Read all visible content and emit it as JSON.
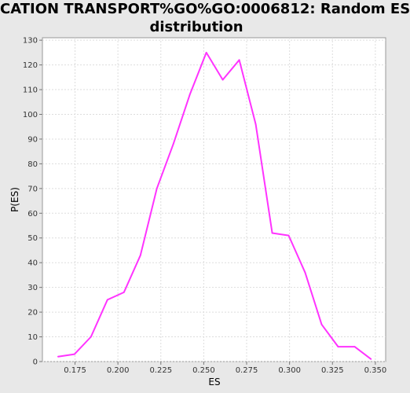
{
  "chart_data": {
    "type": "line",
    "title_lines": [
      "CATION TRANSPORT%GO%GO:0006812: Random ES",
      "distribution"
    ],
    "xlabel": "ES",
    "ylabel": "P(ES)",
    "xlim": [
      0.156,
      0.356
    ],
    "ylim": [
      0,
      131
    ],
    "x_ticks": [
      0.175,
      0.2,
      0.225,
      0.25,
      0.275,
      0.3,
      0.325,
      0.35
    ],
    "x_tick_labels": [
      "0.175",
      "0.200",
      "0.225",
      "0.250",
      "0.275",
      "0.300",
      "0.325",
      "0.350"
    ],
    "y_ticks": [
      0,
      10,
      20,
      30,
      40,
      50,
      60,
      70,
      80,
      90,
      100,
      110,
      120,
      130
    ],
    "y_tick_labels": [
      "0",
      "10",
      "20",
      "30",
      "40",
      "50",
      "60",
      "70",
      "80",
      "90",
      "100",
      "110",
      "120",
      "130"
    ],
    "grid": true,
    "series": [
      {
        "color": "#ff33ff",
        "x": [
          0.1651,
          0.1747,
          0.1843,
          0.1939,
          0.2035,
          0.2131,
          0.2227,
          0.2323,
          0.2419,
          0.2515,
          0.2611,
          0.2707,
          0.2803,
          0.2899,
          0.2995,
          0.3091,
          0.3187,
          0.3283,
          0.3379,
          0.3475
        ],
        "y": [
          2,
          3,
          10,
          25,
          28,
          43,
          70,
          88,
          108,
          125,
          114,
          122,
          96,
          52,
          51,
          36,
          15,
          6,
          6,
          1
        ]
      }
    ]
  }
}
